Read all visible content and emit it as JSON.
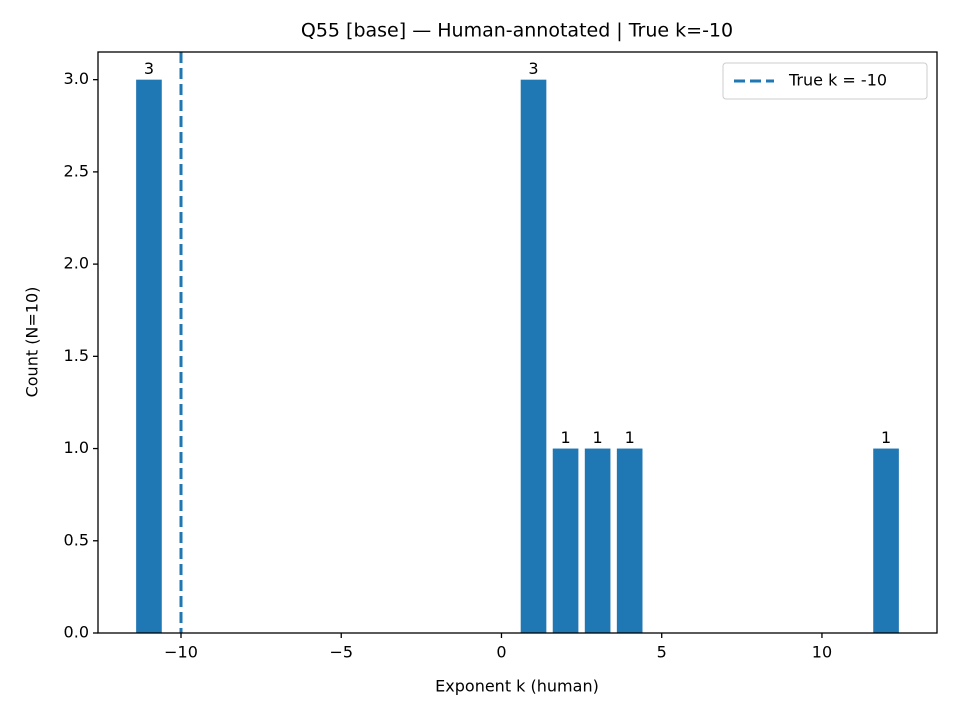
{
  "chart_data": {
    "type": "bar",
    "title": "Q55 [base] — Human-annotated | True k=-10",
    "xlabel": "Exponent k (human)",
    "ylabel": "Count (N=10)",
    "x": [
      -11,
      1,
      2,
      3,
      4,
      12
    ],
    "values": [
      3,
      3,
      1,
      1,
      1,
      1
    ],
    "color": "#1f77b4",
    "xlim": [
      -12.59,
      13.59
    ],
    "ylim": [
      0,
      3.15
    ],
    "xticks": [
      {
        "value": -10,
        "label": "−10"
      },
      {
        "value": -5,
        "label": "−5"
      },
      0,
      5,
      10
    ],
    "yticks": [
      {
        "value": 0,
        "label": "0.0"
      },
      {
        "value": 0.5,
        "label": "0.5"
      },
      {
        "value": 1,
        "label": "1.0"
      },
      {
        "value": 1.5,
        "label": "1.5"
      },
      {
        "value": 2,
        "label": "2.0"
      },
      {
        "value": 2.5,
        "label": "2.5"
      },
      {
        "value": 3,
        "label": "3.0"
      }
    ],
    "vlines": [
      {
        "x": -10,
        "name": "True k = -10",
        "color": "#1f77b4",
        "style": "dashed"
      }
    ],
    "legend": "upper right",
    "grid": false
  }
}
